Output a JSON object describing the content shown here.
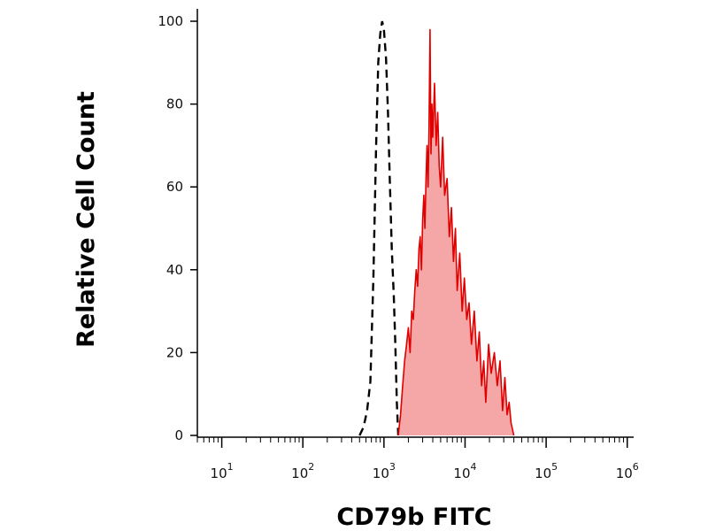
{
  "chart_data": {
    "type": "area",
    "xlabel": "CD79b FITC",
    "ylabel": "Relative Cell Count",
    "x_scale": "log",
    "xlim": [
      5,
      1200000
    ],
    "ylim": [
      0,
      100
    ],
    "grid": false,
    "x_ticks": [
      {
        "base": "10",
        "exp": "1",
        "value": 10
      },
      {
        "base": "10",
        "exp": "2",
        "value": 100
      },
      {
        "base": "10",
        "exp": "3",
        "value": 1000
      },
      {
        "base": "10",
        "exp": "4",
        "value": 10000
      },
      {
        "base": "10",
        "exp": "5",
        "value": 100000
      },
      {
        "base": "10",
        "exp": "6",
        "value": 1000000
      }
    ],
    "y_ticks": [
      {
        "label": "0",
        "value": 0
      },
      {
        "label": "20",
        "value": 20
      },
      {
        "label": "40",
        "value": 40
      },
      {
        "label": "60",
        "value": 60
      },
      {
        "label": "80",
        "value": 80
      },
      {
        "label": "100",
        "value": 100
      }
    ],
    "series": [
      {
        "style": "dashed-outline",
        "color": "#000000",
        "x": [
          500,
          560,
          620,
          680,
          740,
          800,
          850,
          900,
          950,
          1000,
          1060,
          1120,
          1180,
          1250,
          1320,
          1380,
          1440,
          1500
        ],
        "y": [
          0,
          2,
          6,
          13,
          38,
          70,
          90,
          97,
          100,
          98,
          91,
          78,
          62,
          45,
          34,
          22,
          8,
          0
        ]
      },
      {
        "style": "filled",
        "color": "#e00000",
        "fill": "#f5a6a6",
        "x": [
          1500,
          1600,
          1700,
          1800,
          1900,
          2000,
          2100,
          2200,
          2300,
          2400,
          2500,
          2600,
          2700,
          2800,
          2900,
          3000,
          3100,
          3200,
          3300,
          3400,
          3500,
          3600,
          3700,
          3800,
          3900,
          4000,
          4200,
          4400,
          4600,
          4800,
          5000,
          5300,
          5600,
          6000,
          6400,
          6800,
          7200,
          7600,
          8000,
          8600,
          9200,
          9800,
          10500,
          11200,
          12000,
          13000,
          14000,
          15000,
          16000,
          17000,
          18000,
          19500,
          21000,
          23000,
          25000,
          27000,
          29000,
          31000,
          33000,
          35000,
          37000,
          40000
        ],
        "y": [
          0,
          5,
          12,
          18,
          22,
          26,
          20,
          30,
          28,
          35,
          40,
          36,
          45,
          48,
          40,
          52,
          58,
          50,
          62,
          70,
          60,
          75,
          98,
          68,
          80,
          72,
          85,
          70,
          78,
          65,
          60,
          72,
          58,
          62,
          48,
          55,
          42,
          50,
          35,
          44,
          30,
          38,
          28,
          32,
          22,
          30,
          18,
          25,
          12,
          18,
          8,
          22,
          15,
          20,
          12,
          18,
          6,
          14,
          5,
          8,
          3,
          0
        ]
      }
    ]
  }
}
